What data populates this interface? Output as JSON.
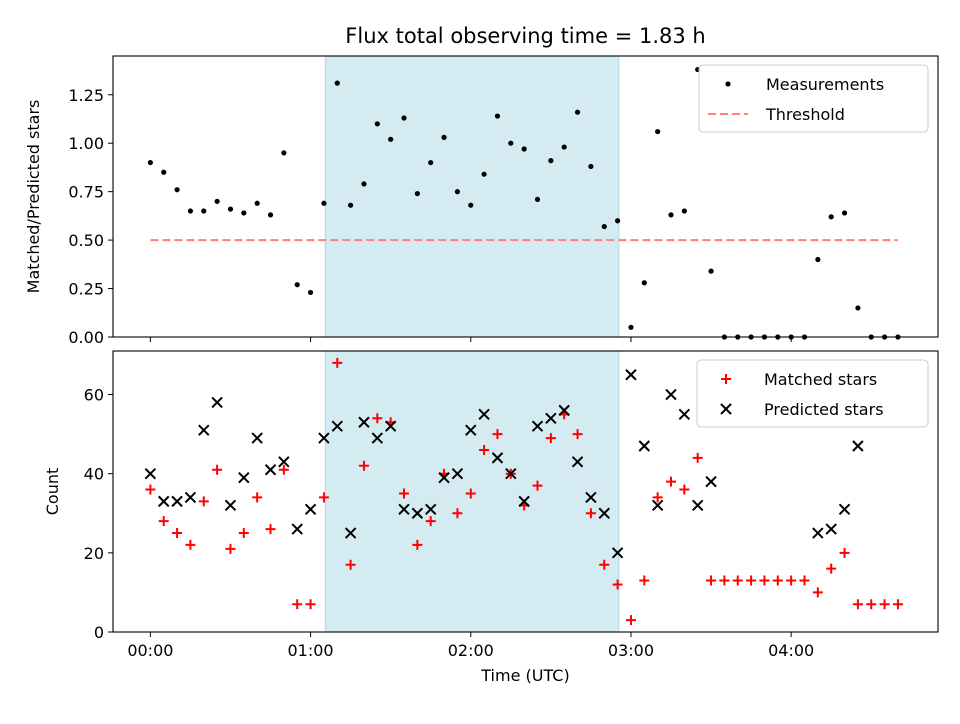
{
  "chart_data": [
    {
      "type": "scatter",
      "title": "Flux total observing time = 1.83 h",
      "xlabel": "",
      "ylabel": "Matched/Predicted stars",
      "xlim": [
        -0.2333,
        4.9167
      ],
      "ylim": [
        0.0,
        1.45
      ],
      "xticks": [
        0,
        1,
        2,
        3,
        4
      ],
      "xtick_labels": [
        "",
        "",
        "",
        "",
        ""
      ],
      "yticks": [
        0.0,
        0.25,
        0.5,
        0.75,
        1.0,
        1.25
      ],
      "ytick_labels": [
        "0.00",
        "0.25",
        "0.50",
        "0.75",
        "1.00",
        "1.25"
      ],
      "shaded_region": {
        "x": [
          1.0917,
          2.925
        ],
        "color": "#add8e6"
      },
      "legend": {
        "placement": "upper right",
        "entries": [
          "Measurements",
          "Threshold"
        ]
      },
      "series": [
        {
          "name": "Measurements",
          "marker": "dot",
          "color": "#000000",
          "x": [
            0.0,
            0.0833,
            0.1667,
            0.25,
            0.3333,
            0.4167,
            0.5,
            0.5833,
            0.6667,
            0.75,
            0.8333,
            0.9167,
            1.0,
            1.0833,
            1.1667,
            1.25,
            1.3333,
            1.4167,
            1.5,
            1.5833,
            1.6667,
            1.75,
            1.8333,
            1.9167,
            2.0,
            2.0833,
            2.1667,
            2.25,
            2.3333,
            2.4167,
            2.5,
            2.5833,
            2.6667,
            2.75,
            2.8333,
            2.9167,
            3.0,
            3.0833,
            3.1667,
            3.25,
            3.3333,
            3.4167,
            3.5,
            3.5833,
            3.6667,
            3.75,
            3.8333,
            3.9167,
            4.0,
            4.0833,
            4.1667,
            4.25,
            4.3333,
            4.4167,
            4.5,
            4.5833,
            4.6667
          ],
          "y": [
            0.9,
            0.85,
            0.76,
            0.65,
            0.65,
            0.7,
            0.66,
            0.64,
            0.69,
            0.63,
            0.95,
            0.27,
            0.23,
            0.69,
            1.31,
            0.68,
            0.79,
            1.1,
            1.02,
            1.13,
            0.74,
            0.9,
            1.03,
            0.75,
            0.68,
            0.84,
            1.14,
            1.0,
            0.97,
            0.71,
            0.91,
            0.98,
            1.16,
            0.88,
            0.57,
            0.6,
            0.05,
            0.28,
            1.06,
            0.63,
            0.65,
            1.38,
            0.34,
            0.0,
            0.0,
            0.0,
            0.0,
            0.0,
            0.0,
            0.0,
            0.4,
            0.62,
            0.64,
            0.15,
            0.0,
            0.0,
            0.0
          ]
        },
        {
          "name": "Threshold",
          "marker": "dashed-line",
          "color": "#ff7f7f",
          "x": [
            0.0,
            4.6667
          ],
          "y": [
            0.5,
            0.5
          ]
        }
      ]
    },
    {
      "type": "scatter",
      "title": "",
      "xlabel": "Time (UTC)",
      "ylabel": "Count",
      "xlim": [
        -0.2333,
        4.9167
      ],
      "ylim": [
        0,
        71
      ],
      "xticks": [
        0,
        1,
        2,
        3,
        4
      ],
      "xtick_labels": [
        "00:00",
        "01:00",
        "02:00",
        "03:00",
        "04:00"
      ],
      "yticks": [
        0,
        20,
        40,
        60
      ],
      "ytick_labels": [
        "0",
        "20",
        "40",
        "60"
      ],
      "shaded_region": {
        "x": [
          1.0917,
          2.925
        ],
        "color": "#add8e6"
      },
      "legend": {
        "placement": "upper right",
        "entries": [
          "Matched stars",
          "Predicted stars"
        ]
      },
      "series": [
        {
          "name": "Matched stars",
          "marker": "plus",
          "color": "#ff0000",
          "x": [
            0.0,
            0.0833,
            0.1667,
            0.25,
            0.3333,
            0.4167,
            0.5,
            0.5833,
            0.6667,
            0.75,
            0.8333,
            0.9167,
            1.0,
            1.0833,
            1.1667,
            1.25,
            1.3333,
            1.4167,
            1.5,
            1.5833,
            1.6667,
            1.75,
            1.8333,
            1.9167,
            2.0,
            2.0833,
            2.1667,
            2.25,
            2.3333,
            2.4167,
            2.5,
            2.5833,
            2.6667,
            2.75,
            2.8333,
            2.9167,
            3.0,
            3.0833,
            3.1667,
            3.25,
            3.3333,
            3.4167,
            3.5,
            3.5833,
            3.6667,
            3.75,
            3.8333,
            3.9167,
            4.0,
            4.0833,
            4.1667,
            4.25,
            4.3333,
            4.4167,
            4.5,
            4.5833,
            4.6667
          ],
          "y": [
            36,
            28,
            25,
            22,
            33,
            41,
            21,
            25,
            34,
            26,
            41,
            7,
            7,
            34,
            68,
            17,
            42,
            54,
            53,
            35,
            22,
            28,
            40,
            30,
            35,
            46,
            50,
            40,
            32,
            37,
            49,
            55,
            50,
            30,
            17,
            12,
            3,
            13,
            34,
            38,
            36,
            44,
            13,
            13,
            13,
            13,
            13,
            13,
            13,
            13,
            10,
            16,
            20,
            7,
            7,
            7,
            7
          ]
        },
        {
          "name": "Predicted stars",
          "marker": "x",
          "color": "#000000",
          "x": [
            0.0,
            0.0833,
            0.1667,
            0.25,
            0.3333,
            0.4167,
            0.5,
            0.5833,
            0.6667,
            0.75,
            0.8333,
            0.9167,
            1.0,
            1.0833,
            1.1667,
            1.25,
            1.3333,
            1.4167,
            1.5,
            1.5833,
            1.6667,
            1.75,
            1.8333,
            1.9167,
            2.0,
            2.0833,
            2.1667,
            2.25,
            2.3333,
            2.4167,
            2.5,
            2.5833,
            2.6667,
            2.75,
            2.8333,
            2.9167,
            3.0,
            3.0833,
            3.1667,
            3.25,
            3.3333,
            3.4167,
            3.5,
            4.1667,
            4.25,
            4.3333,
            4.4167
          ],
          "y": [
            40,
            33,
            33,
            34,
            51,
            58,
            32,
            39,
            49,
            41,
            43,
            26,
            31,
            49,
            52,
            25,
            53,
            49,
            52,
            31,
            30,
            31,
            39,
            40,
            51,
            55,
            44,
            40,
            33,
            52,
            54,
            56,
            43,
            34,
            30,
            20,
            65,
            47,
            32,
            60,
            55,
            32,
            38,
            25,
            26,
            31,
            47
          ]
        }
      ]
    }
  ]
}
